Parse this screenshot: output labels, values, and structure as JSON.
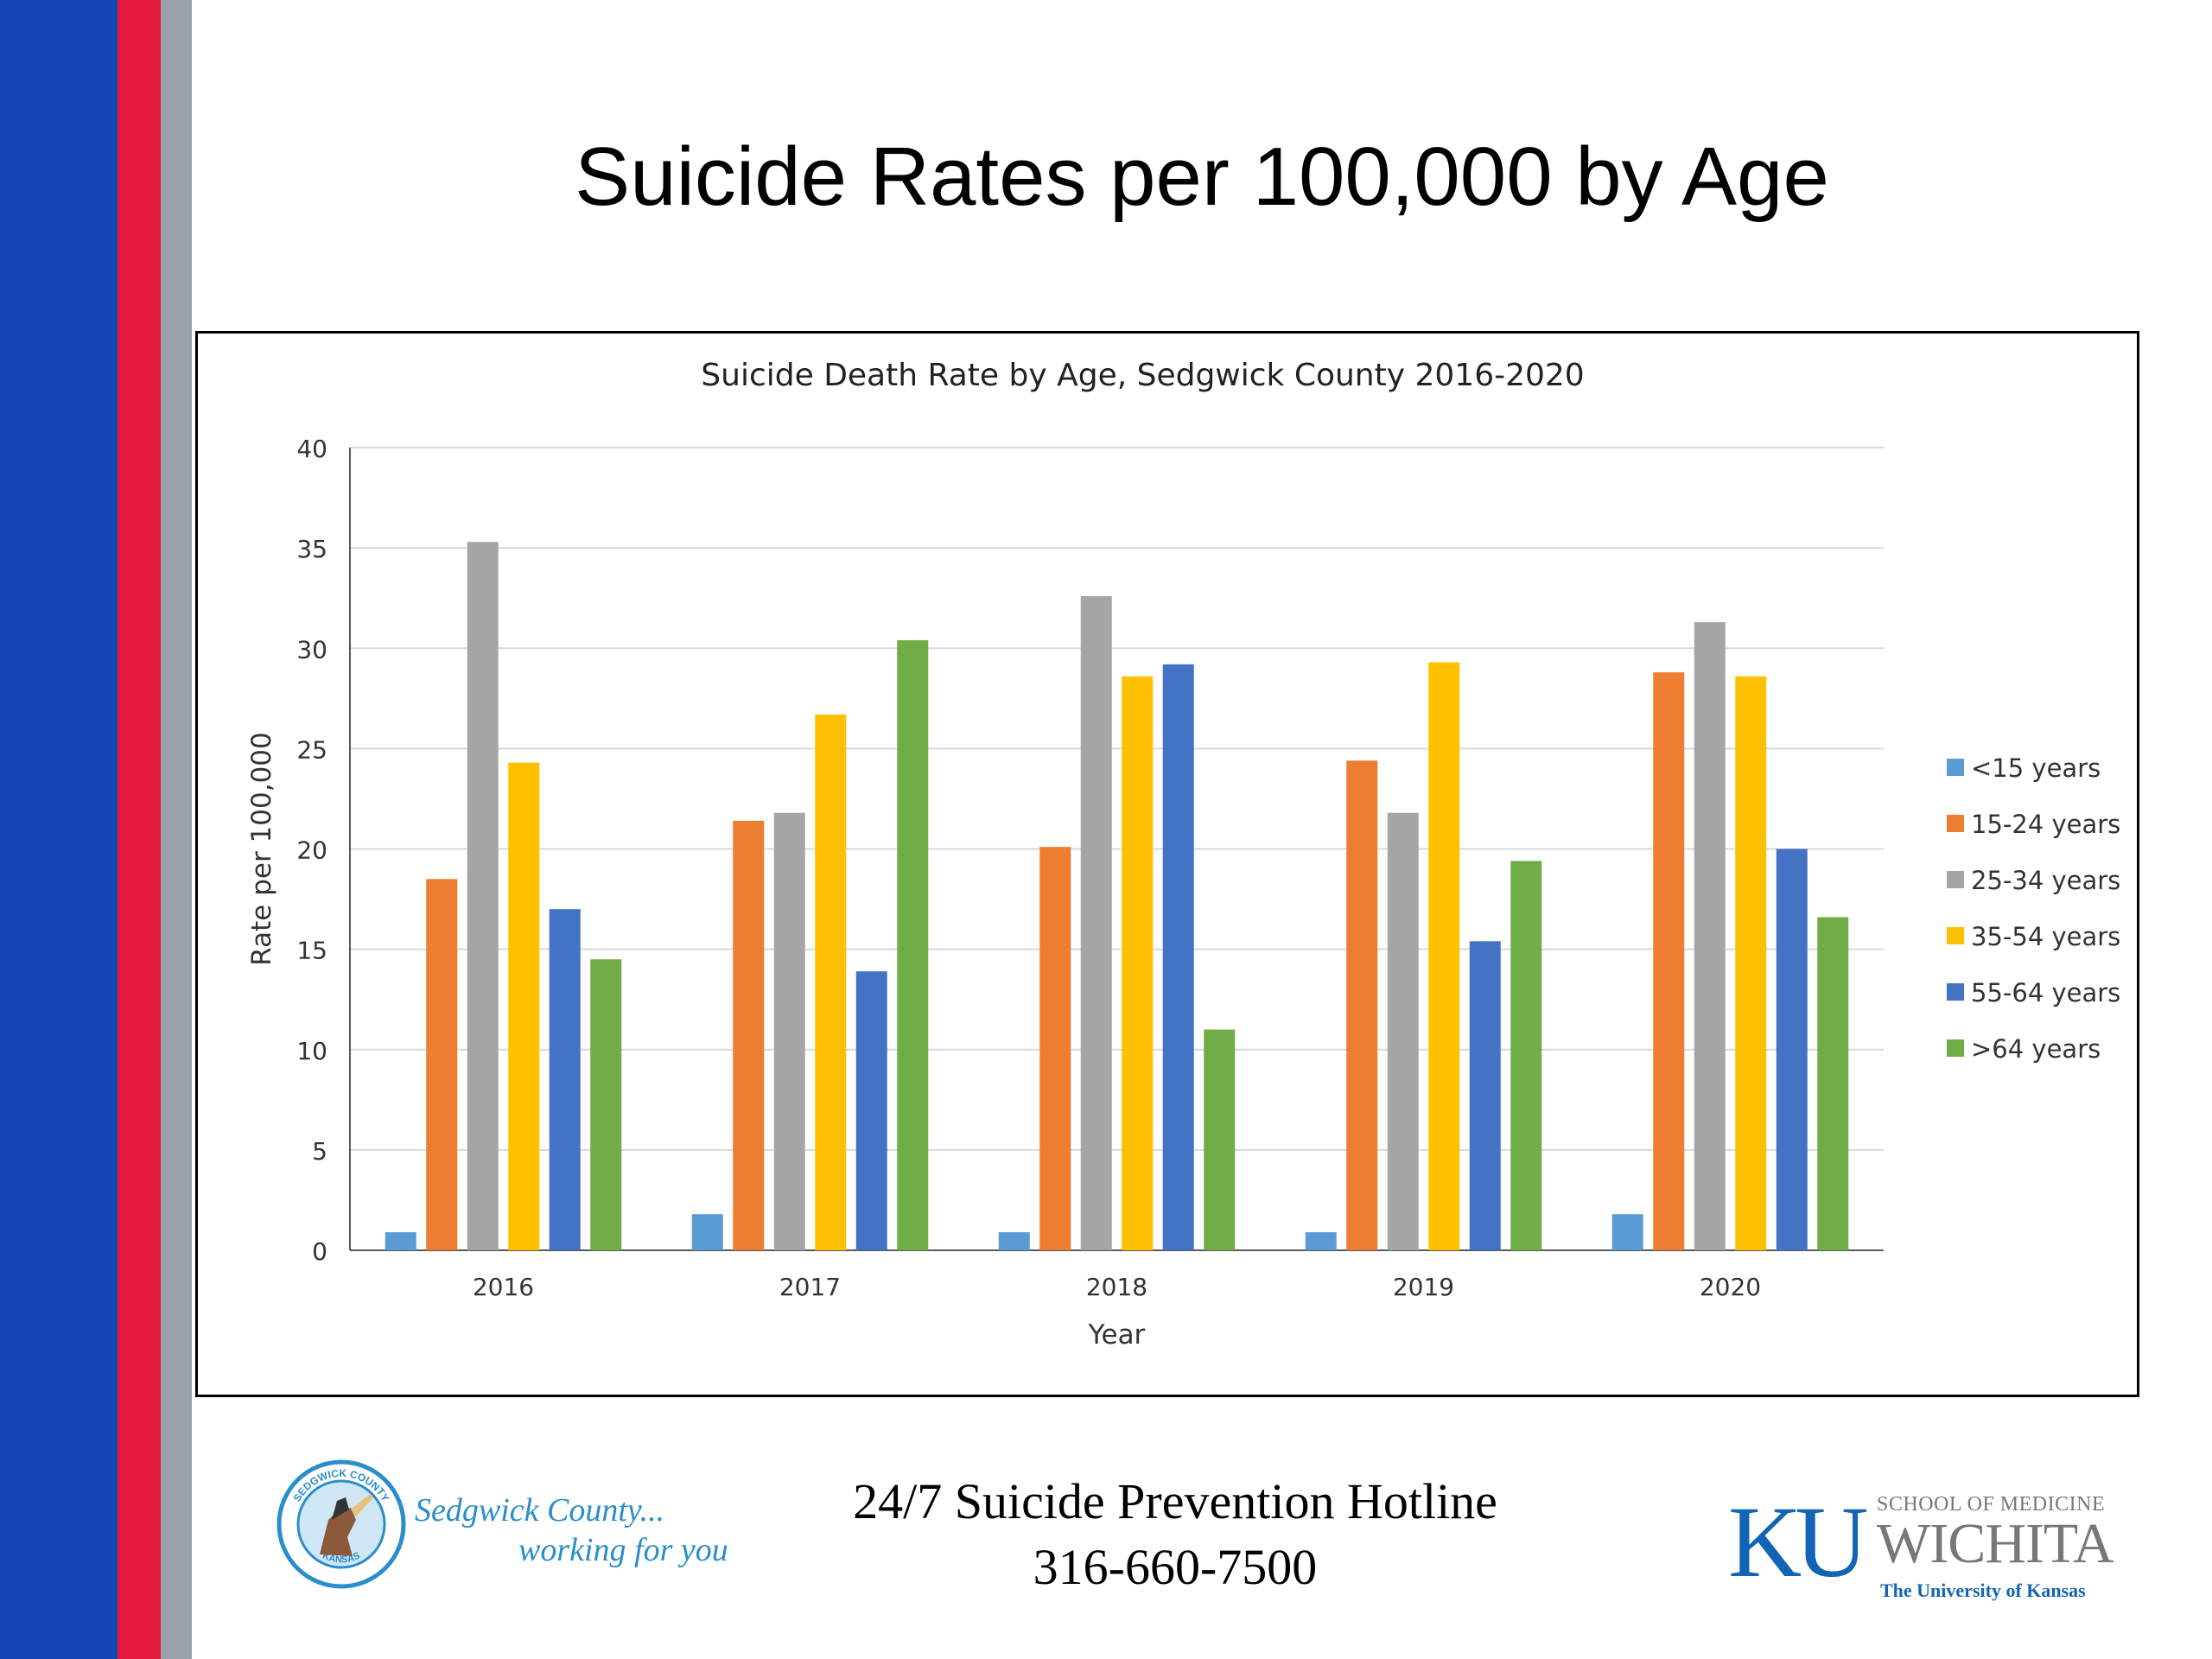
{
  "slide": {
    "title": "Suicide Rates per 100,000 by Age",
    "hotline_title": "24/7 Suicide Prevention Hotline",
    "hotline_number": "316-660-7500"
  },
  "logos": {
    "sedgwick": {
      "line1": "Sedgwick County...",
      "line2": "working for you",
      "seal_text_top": "SEDGWICK COUNTY",
      "seal_text_bottom": "KANSAS"
    },
    "ku": {
      "mark": "KU",
      "line1": "SCHOOL OF MEDICINE",
      "line2": "WICHITA",
      "line3": "The University of Kansas"
    }
  },
  "colors": {
    "stripe_blue": "#1446b4",
    "stripe_red": "#e3183a",
    "stripe_gray": "#9aa0a8"
  },
  "chart_data": {
    "type": "bar",
    "title": "Suicide Death Rate by Age, Sedgwick County 2016-2020",
    "xlabel": "Year",
    "ylabel": "Rate per 100,000",
    "ylim": [
      0,
      40
    ],
    "yticks": [
      0,
      5,
      10,
      15,
      20,
      25,
      30,
      35,
      40
    ],
    "grid": true,
    "legend_position": "right",
    "categories": [
      "2016",
      "2017",
      "2018",
      "2019",
      "2020"
    ],
    "series": [
      {
        "name": "<15 years",
        "color": "#5b9bd5",
        "values": [
          0.9,
          1.8,
          0.9,
          0.9,
          1.8
        ]
      },
      {
        "name": "15-24 years",
        "color": "#ed7d31",
        "values": [
          18.5,
          21.4,
          20.1,
          24.4,
          28.8
        ]
      },
      {
        "name": "25-34 years",
        "color": "#a5a5a5",
        "values": [
          35.3,
          21.8,
          32.6,
          21.8,
          31.3
        ]
      },
      {
        "name": "35-54 years",
        "color": "#ffc000",
        "values": [
          24.3,
          26.7,
          28.6,
          29.3,
          28.6
        ]
      },
      {
        "name": "55-64 years",
        "color": "#4472c4",
        "values": [
          17.0,
          13.9,
          29.2,
          15.4,
          20.0
        ]
      },
      {
        "name": ">64 years",
        "color": "#70ad47",
        "values": [
          14.5,
          30.4,
          11.0,
          19.4,
          16.6
        ]
      }
    ]
  }
}
